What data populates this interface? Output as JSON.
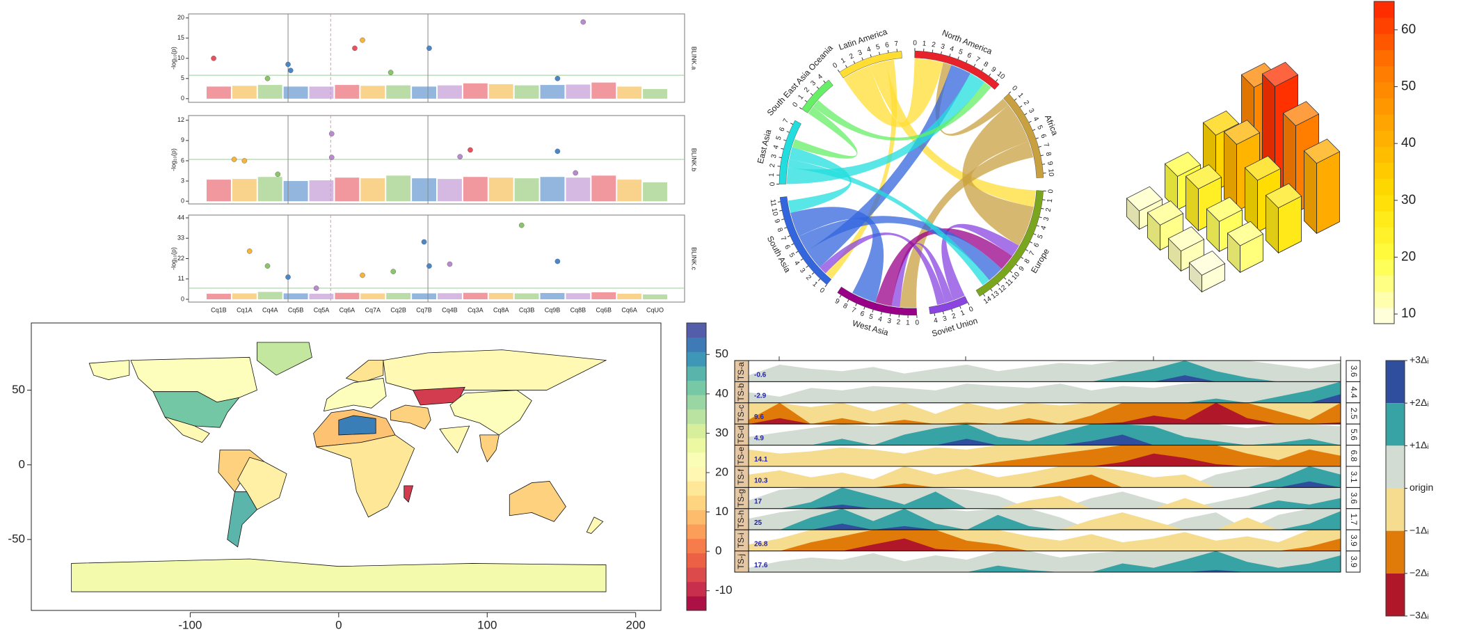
{
  "chart_data": [
    {
      "type": "manhattan",
      "categories": [
        "Cq1B",
        "Cq1A",
        "Cq4A",
        "Cq5B",
        "Cq5A",
        "Cq6A",
        "Cq7A",
        "Cq2B",
        "Cq7B",
        "Cq4B",
        "Cq3A",
        "Cq8A",
        "Cq3B",
        "Cq9B",
        "Cq8B",
        "Cq6B",
        "Cq6A",
        "CqUO"
      ],
      "colors": [
        "#e8515d",
        "#f5b53d",
        "#8cc46a",
        "#4a86c8",
        "#b98ad0"
      ],
      "ylabel": "-log₁₀(p)",
      "xlim": [
        0,
        18
      ],
      "vlines": [
        3.2,
        8.65
      ],
      "dashed_vlines": [
        4.86
      ],
      "panels": [
        {
          "label": "BLINK.a",
          "ylim": [
            -0.9,
            21
          ],
          "yticks": [
            0,
            5,
            10,
            15,
            20
          ],
          "threshold": 5.8,
          "background": [
            3,
            3.2,
            3.4,
            3,
            3,
            3.4,
            3.2,
            3.3,
            3,
            3.3,
            3.8,
            3.6,
            3.3,
            3.4,
            3.5,
            4,
            3,
            2.4
          ],
          "hits": {
            "x": [
              0.3,
              2.4,
              3.2,
              3.3,
              5.8,
              6.1,
              7.2,
              8.7,
              14.7,
              13.7
            ],
            "y": [
              10,
              5,
              8.5,
              7,
              12.5,
              14.5,
              6.5,
              12.5,
              19,
              5
            ]
          }
        },
        {
          "label": "BLINK.b",
          "ylim": [
            -0.4,
            12.7
          ],
          "yticks": [
            0,
            3,
            6,
            9,
            12
          ],
          "threshold": 6.2,
          "background": [
            3.2,
            3.3,
            3.6,
            3,
            3.1,
            3.5,
            3.4,
            3.8,
            3.4,
            3.3,
            3.6,
            3.5,
            3.4,
            3.6,
            3.5,
            3.8,
            3.2,
            2.8
          ],
          "hits": {
            "x": [
              1.1,
              1.5,
              2.8,
              4.9,
              4.9,
              9.9,
              10.3,
              13.7,
              14.4
            ],
            "y": [
              6.2,
              6,
              4,
              10,
              6.5,
              6.6,
              7.6,
              7.4,
              4.2
            ]
          }
        },
        {
          "label": "BLINK.c",
          "ylim": [
            -1.5,
            45.5
          ],
          "yticks": [
            0,
            11,
            22,
            33,
            44
          ],
          "threshold": 6,
          "background": [
            3,
            3.2,
            4,
            3.2,
            3,
            3.5,
            3.2,
            3.4,
            3.2,
            3.3,
            3.5,
            3.4,
            3.2,
            3.4,
            3.3,
            3.8,
            3,
            2.6
          ],
          "hits": {
            "x": [
              1.7,
              2.4,
              3.2,
              4.3,
              6.1,
              7.3,
              8.5,
              8.7,
              9.5,
              12.3,
              13.7
            ],
            "y": [
              26,
              18,
              12,
              6,
              13,
              15,
              31,
              18,
              19,
              40,
              20.5
            ]
          }
        }
      ]
    },
    {
      "type": "chord",
      "sectors": [
        {
          "name": "Latin America",
          "color": "#ffdd33",
          "size": 7.5,
          "ticks": [
            0,
            1,
            2,
            3,
            4,
            5,
            6,
            7
          ]
        },
        {
          "name": "North America",
          "color": "#e8222a",
          "size": 10.5,
          "ticks": [
            0,
            1,
            2,
            3,
            4,
            5,
            6,
            7,
            8,
            9,
            10
          ]
        },
        {
          "name": "Africa",
          "color": "#c9a040",
          "size": 10.5,
          "ticks": [
            0,
            1,
            2,
            3,
            4,
            5,
            6,
            7,
            8,
            9,
            10
          ]
        },
        {
          "name": "Europe",
          "color": "#7aa51e",
          "size": 14.5,
          "ticks": [
            0,
            1,
            2,
            3,
            4,
            5,
            6,
            7,
            8,
            9,
            10,
            11,
            12,
            13,
            14
          ]
        },
        {
          "name": "Soviet Union",
          "color": "#8a44e0",
          "size": 4.5,
          "ticks": [
            0,
            1,
            2,
            3,
            4
          ]
        },
        {
          "name": "West Asia",
          "color": "#990088",
          "size": 9.5,
          "ticks": [
            0,
            1,
            2,
            3,
            4,
            5,
            6,
            7,
            8,
            9
          ]
        },
        {
          "name": "South Asia",
          "color": "#3366dd",
          "size": 11.5,
          "ticks": [
            0,
            1,
            2,
            3,
            4,
            5,
            6,
            7,
            8,
            9,
            10,
            11
          ]
        },
        {
          "name": "East Asia",
          "color": "#22dddd",
          "size": 7.5,
          "ticks": [
            0,
            1,
            2,
            3,
            4,
            5,
            6,
            7
          ]
        },
        {
          "name": "South East Asia Oceania",
          "color": "#66ee66",
          "size": 4.5,
          "ticks": [
            0,
            1,
            2,
            3,
            4
          ]
        }
      ],
      "flows": [
        {
          "from": "Latin America",
          "to": "North America",
          "value": 3.5
        },
        {
          "from": "Latin America",
          "to": "Europe",
          "value": 2
        },
        {
          "from": "Latin America",
          "to": "South Asia",
          "value": 1
        },
        {
          "from": "Africa",
          "to": "North America",
          "value": 1
        },
        {
          "from": "Africa",
          "to": "Europe",
          "value": 5
        },
        {
          "from": "Africa",
          "to": "West Asia",
          "value": 2
        },
        {
          "from": "Soviet Union",
          "to": "Europe",
          "value": 1.5
        },
        {
          "from": "Soviet Union",
          "to": "West Asia",
          "value": 1
        },
        {
          "from": "Soviet Union",
          "to": "South Asia",
          "value": 1
        },
        {
          "from": "West Asia",
          "to": "Europe",
          "value": 2
        },
        {
          "from": "South Asia",
          "to": "North America",
          "value": 2.5
        },
        {
          "from": "South Asia",
          "to": "Europe",
          "value": 2
        },
        {
          "from": "South Asia",
          "to": "West Asia",
          "value": 3
        },
        {
          "from": "East Asia",
          "to": "North America",
          "value": 2
        },
        {
          "from": "East Asia",
          "to": "Europe",
          "value": 1
        },
        {
          "from": "East Asia",
          "to": "South Asia",
          "value": 1.5
        },
        {
          "from": "South East Asia Oceania",
          "to": "East Asia",
          "value": 1
        },
        {
          "from": "South East Asia Oceania",
          "to": "North America",
          "value": 1
        }
      ]
    },
    {
      "type": "bar3d",
      "values": [
        [
          11,
          15,
          12,
          10
        ],
        [
          20,
          25,
          18,
          16
        ],
        [
          33,
          40,
          31,
          27
        ],
        [
          50,
          63,
          52,
          42
        ]
      ],
      "colorbar": {
        "lim": [
          8.3,
          65
        ],
        "ticks": [
          10,
          20,
          30,
          40,
          50,
          60
        ],
        "colors": [
          "#ffffee",
          "#ffff44",
          "#ffdd00",
          "#ffaa00",
          "#ff7700",
          "#ff2200"
        ]
      }
    },
    {
      "type": "choropleth",
      "xlim": [
        -207,
        217
      ],
      "ylim": [
        -97.5,
        95
      ],
      "xticks": [
        -100,
        0,
        100,
        200
      ],
      "yticks": [
        -50,
        0,
        50
      ],
      "values": [
        22,
        33,
        42,
        20,
        12,
        18,
        45,
        15,
        22,
        20,
        -8,
        12,
        22,
        20,
        12,
        10,
        52,
        16,
        -8,
        12,
        20,
        25,
        22
      ],
      "colorbar": {
        "lim": [
          -15,
          58
        ],
        "ticks": [
          -10,
          0,
          10,
          20,
          30,
          40,
          50
        ],
        "colors": [
          "#9e0142",
          "#d53e4f",
          "#f46d43",
          "#fdae61",
          "#fee08b",
          "#ffffbf",
          "#e6f598",
          "#abdda4",
          "#66c2a5",
          "#3288bd",
          "#5e4fa2"
        ]
      }
    },
    {
      "type": "horizon",
      "series": [
        {
          "name": "TS-a",
          "origin": -0.6,
          "delta": 3.6,
          "values": [
            0.5,
            2.3,
            1.6,
            1.2,
            1.9,
            0.8,
            1.6,
            2.3,
            1.2,
            1.9,
            2.6,
            2.3,
            4.1,
            5.2,
            7.7,
            4.8,
            3.7,
            2.3,
            1.6,
            2.6
          ]
        },
        {
          "name": "TS-b",
          "origin": -2.9,
          "delta": 4.4,
          "values": [
            -0.7,
            -1.6,
            0.2,
            -0.3,
            0.6,
            0.2,
            -0.3,
            1.1,
            0.6,
            0.2,
            1.1,
            -0.3,
            0.6,
            0.2,
            1.1,
            2.4,
            1.5,
            2.8,
            4.1,
            7.7
          ]
        },
        {
          "name": "TS-c",
          "origin": 9.6,
          "delta": 2.5,
          "values": [
            6.6,
            3.9,
            7.6,
            6.4,
            8.1,
            6.6,
            8.4,
            6.9,
            7.9,
            6.4,
            7.4,
            6.1,
            4.4,
            3.6,
            4.1,
            1.1,
            3.9,
            5.6,
            6.6,
            4.4
          ]
        },
        {
          "name": "TS-d",
          "origin": 4.9,
          "delta": 5.6,
          "values": [
            7.1,
            8.3,
            9.4,
            12.2,
            9.9,
            13.3,
            15.0,
            17.8,
            12.7,
            11.6,
            13.9,
            17.2,
            18.9,
            15.5,
            12.7,
            11.6,
            9.4,
            11.1,
            12.2,
            9.9
          ]
        },
        {
          "name": "TS-e",
          "origin": 14.1,
          "delta": 6.8,
          "values": [
            8.7,
            10.0,
            9.3,
            8.0,
            8.7,
            10.0,
            8.0,
            8.7,
            5.9,
            4.6,
            3.2,
            1.9,
            -0.9,
            -3.6,
            -2.2,
            -0.2,
            3.2,
            5.3,
            1.9,
            3.9
          ]
        },
        {
          "name": "TS-f",
          "origin": 10.3,
          "delta": 3.1,
          "values": [
            8.4,
            7.8,
            8.8,
            8.1,
            9.1,
            6.6,
            8.4,
            7.5,
            8.8,
            8.1,
            6.3,
            5.3,
            7.8,
            8.8,
            8.4,
            12.2,
            13.1,
            14.6,
            17.4,
            15.3
          ]
        },
        {
          "name": "TS-g",
          "origin": 17,
          "delta": 3.6,
          "values": [
            18.4,
            20.2,
            21.7,
            24.9,
            22.8,
            21.3,
            23.5,
            20.2,
            19.2,
            15.6,
            14.8,
            18.8,
            19.9,
            18.4,
            15.2,
            18.1,
            19.2,
            22.0,
            21.3,
            22.4
          ]
        },
        {
          "name": "TS-h",
          "origin": 25,
          "delta": 1.7,
          "values": [
            25.9,
            26.4,
            27.7,
            28.9,
            27.4,
            28.7,
            27.2,
            26.5,
            27.9,
            27.0,
            26.0,
            24.2,
            23.6,
            24.3,
            25.9,
            26.4,
            24.0,
            26.2,
            27.2,
            28.2
          ]
        },
        {
          "name": "TS-i",
          "origin": 26.8,
          "delta": 3.9,
          "values": [
            25.6,
            24.5,
            21.3,
            20.2,
            17.8,
            16.7,
            18.6,
            21.0,
            21.7,
            24.1,
            24.9,
            23.7,
            25.2,
            24.5,
            23.3,
            24.9,
            24.1,
            25.2,
            22.1,
            20.6
          ]
        },
        {
          "name": "TS-j",
          "origin": 17.6,
          "delta": 3.9,
          "values": [
            18.4,
            19.6,
            20.3,
            19.9,
            21.1,
            19.6,
            20.7,
            19.9,
            22.7,
            21.9,
            20.3,
            21.1,
            23.1,
            22.3,
            23.8,
            25.8,
            23.4,
            22.3,
            23.1,
            24.6
          ]
        }
      ],
      "legend": {
        "labels": [
          "+3Δᵢ",
          "+2Δᵢ",
          "+1Δᵢ",
          "origin",
          "−1Δᵢ",
          "−2Δᵢ",
          "−3Δᵢ"
        ],
        "colors": [
          "#2f4f9e",
          "#38a3a5",
          "#d3dcd2",
          "#f6dc8e",
          "#e07b0a",
          "#b0182a"
        ]
      }
    }
  ]
}
